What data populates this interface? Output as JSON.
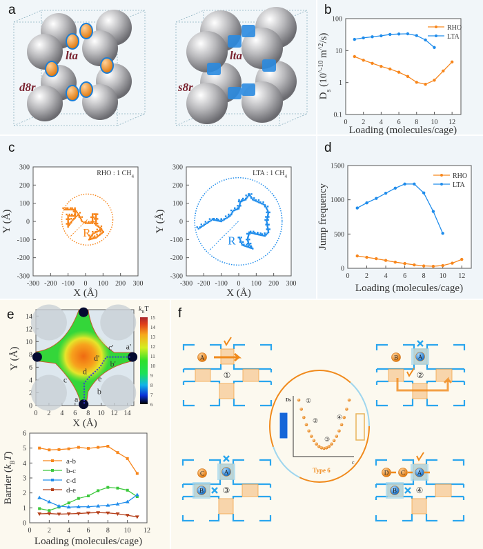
{
  "panel_labels": {
    "a": "a",
    "b": "b",
    "c": "c",
    "d": "d",
    "e": "e",
    "f": "f"
  },
  "panel_a": {
    "left_cage": "lta",
    "left_ring": "d8r",
    "right_cage": "lta",
    "right_ring": "s8r"
  },
  "colors": {
    "rho": "#f7861c",
    "lta": "#1f8ceb",
    "ab": "#f7861c",
    "bc": "#3cc83c",
    "cd": "#1f8ceb",
    "de": "#b5401b"
  },
  "chart_data": [
    {
      "id": "b",
      "type": "line",
      "xlabel": "Loading (molecules/cage)",
      "ylabel": "Ds (10^-10 m^2/s)",
      "ylabel_parts": {
        "d": "D",
        "s": "s",
        "open": " (10",
        "exp": "-10",
        "unit": " m",
        "exp2": "2",
        "close": "/s)"
      },
      "yscale": "log",
      "xlim": [
        0,
        13
      ],
      "ylim": [
        0.1,
        100
      ],
      "x_ticks": [
        0,
        2,
        4,
        6,
        8,
        10,
        12
      ],
      "x_tick_labels": [
        "0",
        "2",
        "4",
        "6",
        "8",
        "10",
        "12"
      ],
      "y_ticks": [
        0.1,
        1,
        10,
        100
      ],
      "y_tick_labels": [
        "0.1",
        "1",
        "10",
        "100"
      ],
      "legend": "top-right",
      "series": [
        {
          "name": "RHO",
          "x": [
            1,
            2,
            3,
            4,
            5,
            6,
            7,
            8,
            9,
            10,
            11,
            12
          ],
          "y": [
            6.5,
            5.0,
            4.0,
            3.2,
            2.65,
            2.1,
            1.55,
            1.02,
            0.88,
            1.18,
            2.3,
            4.4
          ]
        },
        {
          "name": "LTA",
          "x": [
            1,
            2,
            3,
            4,
            5,
            6,
            7,
            8,
            9,
            10
          ],
          "y": [
            22.5,
            25,
            27,
            29,
            32,
            33,
            33.5,
            29.5,
            21.5,
            12.5
          ]
        }
      ]
    },
    {
      "id": "c1",
      "type": "scatter",
      "title": "RHO : 1 CH",
      "title_sub": "4",
      "xlabel": "X (Å)",
      "ylabel": "Y (Å)",
      "xlim": [
        -300,
        300
      ],
      "ylim": [
        -300,
        300
      ],
      "x_tick_labels": [
        "-300",
        "-200",
        "-100",
        "0",
        "100",
        "200",
        "300"
      ],
      "y_tick_labels": [
        "-300",
        "-200",
        "-100",
        "0",
        "100",
        "200",
        "300"
      ],
      "radius_label": "R",
      "circle": {
        "cx": 10,
        "cy": 10,
        "r": 146
      },
      "trajectory": [
        [
          -120,
          65
        ],
        [
          -60,
          65
        ],
        [
          -60,
          30
        ],
        [
          -100,
          30
        ],
        [
          -100,
          -30
        ],
        [
          -80,
          0
        ],
        [
          -40,
          40
        ],
        [
          -20,
          0
        ],
        [
          0,
          -10
        ],
        [
          40,
          -10
        ],
        [
          40,
          40
        ],
        [
          60,
          40
        ],
        [
          60,
          -20
        ],
        [
          90,
          -40
        ],
        [
          100,
          -60
        ],
        [
          60,
          -90
        ],
        [
          20,
          -100
        ],
        [
          40,
          -70
        ],
        [
          100,
          -40
        ]
      ]
    },
    {
      "id": "c2",
      "type": "scatter",
      "title": "LTA : 1 CH",
      "title_sub": "4",
      "xlabel": "X (Å)",
      "ylabel": "Y (Å)",
      "xlim": [
        -300,
        300
      ],
      "ylim": [
        -300,
        300
      ],
      "x_tick_labels": [
        "-300",
        "-200",
        "-100",
        "0",
        "100",
        "200",
        "300"
      ],
      "y_tick_labels": [
        "-300",
        "-200",
        "-100",
        "0",
        "100",
        "200",
        "300"
      ],
      "radius_label": "R",
      "circle": {
        "cx": -2,
        "cy": 0,
        "r": 250
      },
      "trajectory": [
        [
          -230,
          -40
        ],
        [
          -150,
          10
        ],
        [
          -100,
          0
        ],
        [
          -50,
          30
        ],
        [
          -30,
          60
        ],
        [
          0,
          70
        ],
        [
          10,
          110
        ],
        [
          40,
          120
        ],
        [
          60,
          150
        ],
        [
          80,
          120
        ],
        [
          150,
          90
        ],
        [
          170,
          50
        ],
        [
          160,
          0
        ],
        [
          170,
          -60
        ],
        [
          150,
          -80
        ],
        [
          100,
          -70
        ],
        [
          60,
          -60
        ],
        [
          50,
          -100
        ],
        [
          60,
          -130
        ],
        [
          80,
          -150
        ],
        [
          20,
          -130
        ],
        [
          0,
          -80
        ]
      ]
    },
    {
      "id": "d",
      "type": "line",
      "xlabel": "Loading (molecules/cage)",
      "ylabel": "Jump frequency",
      "xlim": [
        0,
        13
      ],
      "ylim": [
        0,
        1500
      ],
      "x_ticks": [
        0,
        2,
        4,
        6,
        8,
        10,
        12
      ],
      "x_tick_labels": [
        "0",
        "2",
        "4",
        "6",
        "8",
        "10",
        "12"
      ],
      "y_ticks": [
        0,
        500,
        1000,
        1500
      ],
      "y_tick_labels": [
        "0",
        "500",
        "1000",
        "1500"
      ],
      "legend": "top-right",
      "series": [
        {
          "name": "RHO",
          "x": [
            1,
            2,
            3,
            4,
            5,
            6,
            7,
            8,
            9,
            10,
            11,
            12
          ],
          "y": [
            180,
            160,
            140,
            115,
            90,
            70,
            50,
            35,
            30,
            40,
            75,
            130
          ]
        },
        {
          "name": "LTA",
          "x": [
            1,
            2,
            3,
            4,
            5,
            6,
            7,
            8,
            9,
            10
          ],
          "y": [
            880,
            955,
            1020,
            1095,
            1170,
            1230,
            1230,
            1100,
            830,
            510
          ]
        }
      ]
    },
    {
      "id": "e_map",
      "type": "heatmap",
      "xlabel": "X (Å)",
      "ylabel": "Y (Å)",
      "xlim": [
        0,
        15
      ],
      "ylim": [
        0,
        15
      ],
      "x_ticks": [
        0,
        2,
        4,
        6,
        8,
        10,
        12,
        14
      ],
      "x_tick_labels": [
        "0",
        "2",
        "4",
        "6",
        "8",
        "10",
        "12",
        "14"
      ],
      "y_ticks": [
        0,
        2,
        4,
        6,
        8,
        10,
        12,
        14
      ],
      "y_tick_labels": [
        "0",
        "2",
        "4",
        "6",
        "8",
        "10",
        "12",
        "14"
      ],
      "colorbar_title": "k",
      "colorbar_title_sub": "B",
      "colorbar_title_tail": "T",
      "colorbar_range": [
        6,
        15
      ],
      "colorbar_tick_labels": [
        "6",
        "7",
        "8",
        "9",
        "10",
        "11",
        "12",
        "13",
        "14",
        "15"
      ],
      "site_labels": [
        "a",
        "b",
        "c",
        "d",
        "e",
        "a'",
        "b'",
        "c'",
        "d'"
      ]
    },
    {
      "id": "e_barrier",
      "type": "line",
      "xlabel": "Loading (molecules/cage)",
      "ylabel": "Barrier (kBT)",
      "ylabel_parts": {
        "pre": "Barrier (",
        "k": "k",
        "sub": "B",
        "t": "T",
        ")": ")"
      },
      "xlim": [
        0,
        12
      ],
      "ylim": [
        0,
        6
      ],
      "x_ticks": [
        0,
        2,
        4,
        6,
        8,
        10,
        12
      ],
      "x_tick_labels": [
        "0",
        "2",
        "4",
        "6",
        "8",
        "10",
        "12"
      ],
      "y_ticks": [
        0,
        1,
        2,
        3,
        4,
        5,
        6
      ],
      "y_tick_labels": [
        "0",
        "1",
        "2",
        "3",
        "4",
        "5",
        "6"
      ],
      "legend": "center-left",
      "series": [
        {
          "name": "a-b",
          "x": [
            1,
            2,
            3,
            4,
            5,
            6,
            7,
            8,
            9,
            10,
            11
          ],
          "y": [
            5.0,
            4.88,
            4.9,
            4.95,
            5.05,
            4.98,
            5.05,
            5.12,
            4.7,
            4.3,
            3.3
          ]
        },
        {
          "name": "b-c",
          "x": [
            1,
            2,
            3,
            4,
            5,
            6,
            7,
            8,
            9,
            10,
            11
          ],
          "y": [
            0.95,
            0.82,
            1.05,
            1.33,
            1.63,
            1.8,
            2.15,
            2.37,
            2.32,
            2.18,
            1.75
          ]
        },
        {
          "name": "c-d",
          "x": [
            1,
            2,
            3,
            4,
            5,
            6,
            7,
            8,
            9,
            10,
            11
          ],
          "y": [
            1.68,
            1.4,
            1.12,
            1.05,
            1.07,
            1.08,
            1.12,
            1.17,
            1.25,
            1.4,
            1.87
          ]
        },
        {
          "name": "d-e",
          "x": [
            1,
            2,
            3,
            4,
            5,
            6,
            7,
            8,
            9,
            10,
            11
          ],
          "y": [
            0.6,
            0.62,
            0.58,
            0.6,
            0.62,
            0.66,
            0.68,
            0.66,
            0.6,
            0.5,
            0.4
          ]
        }
      ]
    }
  ],
  "panel_f": {
    "cells": [
      {
        "step": "①",
        "molecules": [
          "A"
        ],
        "marks": [
          "check"
        ]
      },
      {
        "step": "②",
        "molecules": [
          "B",
          "A"
        ],
        "marks": [
          "cross",
          "check"
        ]
      },
      {
        "step": "③",
        "molecules": [
          "C",
          "A",
          "B"
        ],
        "marks": [
          "cross",
          "cross"
        ]
      },
      {
        "step": "④",
        "molecules": [
          "D",
          "C",
          "A",
          "B"
        ],
        "marks": [
          "check",
          "cross"
        ]
      }
    ],
    "inset": {
      "y_label": "Ds",
      "x_label": "c",
      "type_label": "Type 6",
      "steps": [
        "①",
        "②",
        "③",
        "④"
      ]
    }
  }
}
